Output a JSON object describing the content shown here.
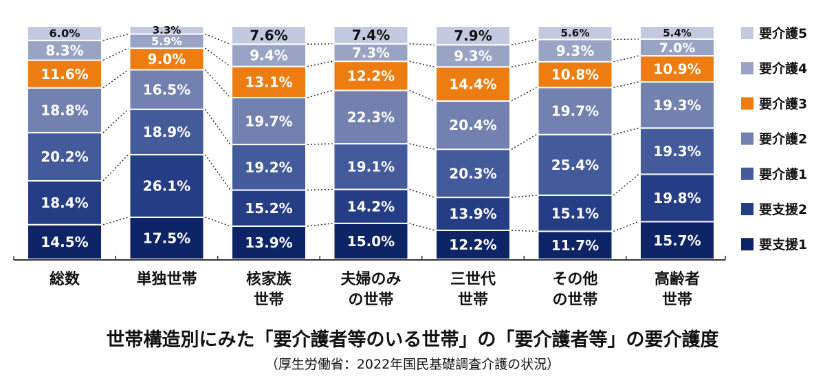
{
  "chart_data": {
    "type": "bar",
    "stacked": true,
    "title": "世帯構造別にみた「要介護者等のいる世帯」の「要介護者等」の要介護度",
    "subtitle": "（厚生労働省：2022年国民基礎調査介護の状況）",
    "categories": [
      [
        "総数"
      ],
      [
        "単独世帯"
      ],
      [
        "核家族",
        "世帯"
      ],
      [
        "夫婦のみ",
        "の世帯"
      ],
      [
        "三世代",
        "世帯"
      ],
      [
        "その他",
        "の世帯"
      ],
      [
        "高齢者",
        "世帯"
      ]
    ],
    "series": [
      {
        "name": "要支援1",
        "color": "#0d2466",
        "values": [
          14.5,
          17.5,
          13.9,
          15.0,
          12.2,
          11.7,
          15.7
        ],
        "labels": [
          "14.5%",
          "17.5%",
          "13.9%",
          "15.0%",
          "12.2%",
          "11.7%",
          "15.7%"
        ]
      },
      {
        "name": "要支援2",
        "color": "#253d85",
        "values": [
          18.4,
          26.1,
          15.2,
          14.2,
          13.9,
          15.1,
          19.8
        ],
        "labels": [
          "18.4%",
          "26.1%",
          "15.2%",
          "14.2%",
          "13.9%",
          "15.1%",
          "19.8%"
        ]
      },
      {
        "name": "要介護1",
        "color": "#435a9b",
        "values": [
          20.2,
          18.9,
          19.2,
          19.1,
          20.3,
          25.4,
          19.3
        ],
        "labels": [
          "20.2%",
          "18.9%",
          "19.2%",
          "19.1%",
          "20.3%",
          "25.4%",
          "19.3%"
        ]
      },
      {
        "name": "要介護2",
        "color": "#7281b0",
        "values": [
          18.8,
          16.5,
          19.7,
          22.3,
          20.4,
          19.7,
          19.3
        ],
        "labels": [
          "18.8%",
          "16.5%",
          "19.7%",
          "22.3%",
          "20.4%",
          "19.7%",
          "19.3%"
        ]
      },
      {
        "name": "要介護3",
        "color": "#ee7d11",
        "values": [
          11.6,
          9.0,
          13.1,
          12.2,
          14.4,
          10.8,
          10.9
        ],
        "labels": [
          "11.6%",
          "9.0%",
          "13.1%",
          "12.2%",
          "14.4%",
          "10.8%",
          "10.9%"
        ]
      },
      {
        "name": "要介護4",
        "color": "#99a4c5",
        "values": [
          8.3,
          5.9,
          9.4,
          7.3,
          9.3,
          9.3,
          7.0
        ],
        "labels": [
          "8.3%",
          "5.9%",
          "9.4%",
          "7.3%",
          "9.3%",
          "9.3%",
          "7.0%"
        ]
      },
      {
        "name": "要介護5",
        "color": "#c3c9de",
        "values": [
          6.0,
          3.3,
          7.6,
          7.4,
          7.9,
          5.6,
          5.4
        ],
        "labels": [
          "6.0%",
          "3.3%",
          "7.6%",
          "7.4%",
          "7.9%",
          "5.6%",
          "5.4%"
        ]
      }
    ],
    "legend_position": "right",
    "connector_lines": "dotted",
    "grid": false,
    "ylim": [
      0,
      100
    ]
  }
}
